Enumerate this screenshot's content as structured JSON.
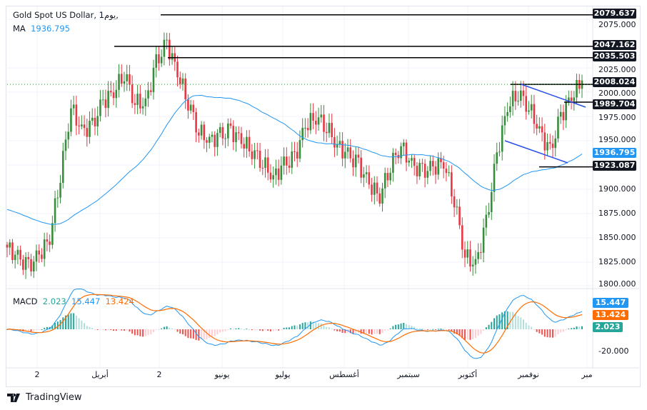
{
  "header": {
    "symbol": "Gold Spot US Dollar, 1يوم,",
    "ma_label": "MA",
    "ma_value": "1936.795"
  },
  "macd_legend": {
    "label": "MACD",
    "histogram": "2.023",
    "macd": "15.447",
    "signal": "13.424"
  },
  "colors": {
    "up": "#26a69a",
    "down": "#ef5350",
    "candle_up": "#388e3c",
    "candle_down": "#e53945",
    "ma": "#2196f3",
    "macd": "#2196f3",
    "signal": "#ff6d00",
    "level": "#000000",
    "trendline": "#2950e8",
    "ma_badge": "#2196f3"
  },
  "price_axis": {
    "ticks": [
      "2075.000",
      "2025.000",
      "2000.000",
      "1975.000",
      "1950.000",
      "1900.000",
      "1875.000",
      "1850.000",
      "1825.000",
      "1800.000"
    ]
  },
  "macd_axis": {
    "ticks": [
      "-20.000"
    ]
  },
  "level_labels": [
    "2079.637",
    "2047.162",
    "2035.503",
    "2008.024",
    "1989.704",
    "1923.087"
  ],
  "time_axis": [
    "2",
    "أبريل",
    "2",
    "يونيو",
    "يوليو",
    "أغسطس",
    "سبتمبر",
    "أكتوبر",
    "نوفمبر",
    "مبر"
  ],
  "branding": {
    "name": "TradingView"
  },
  "chart_data": {
    "type": "candlestick",
    "title": "Gold Spot US Dollar, 1D",
    "ylim": [
      1795,
      2085
    ],
    "weekly_closes": [
      1840,
      1830,
      1820,
      1832,
      1850,
      1915,
      1985,
      1960,
      1965,
      1990,
      2000,
      2020,
      1990,
      1988,
      2030,
      2050,
      2020,
      1990,
      1960,
      1950,
      1955,
      1960,
      1950,
      1940,
      1928,
      1912,
      1925,
      1932,
      1965,
      1975,
      1965,
      1945,
      1935,
      1925,
      1905,
      1893,
      1925,
      1945,
      1925,
      1918,
      1922,
      1928,
      1890,
      1832,
      1822,
      1865,
      1935,
      1985,
      2000,
      1985,
      1960,
      1938,
      1975,
      1995,
      2012
    ],
    "last_price": 2012,
    "indicators": {
      "ma": 1936.795,
      "macd": 15.447,
      "signal": 13.424,
      "histogram": 2.023
    },
    "levels": [
      2079.637,
      2047.162,
      2035.503,
      2008.024,
      1989.704,
      1923.087
    ],
    "grid": true
  }
}
